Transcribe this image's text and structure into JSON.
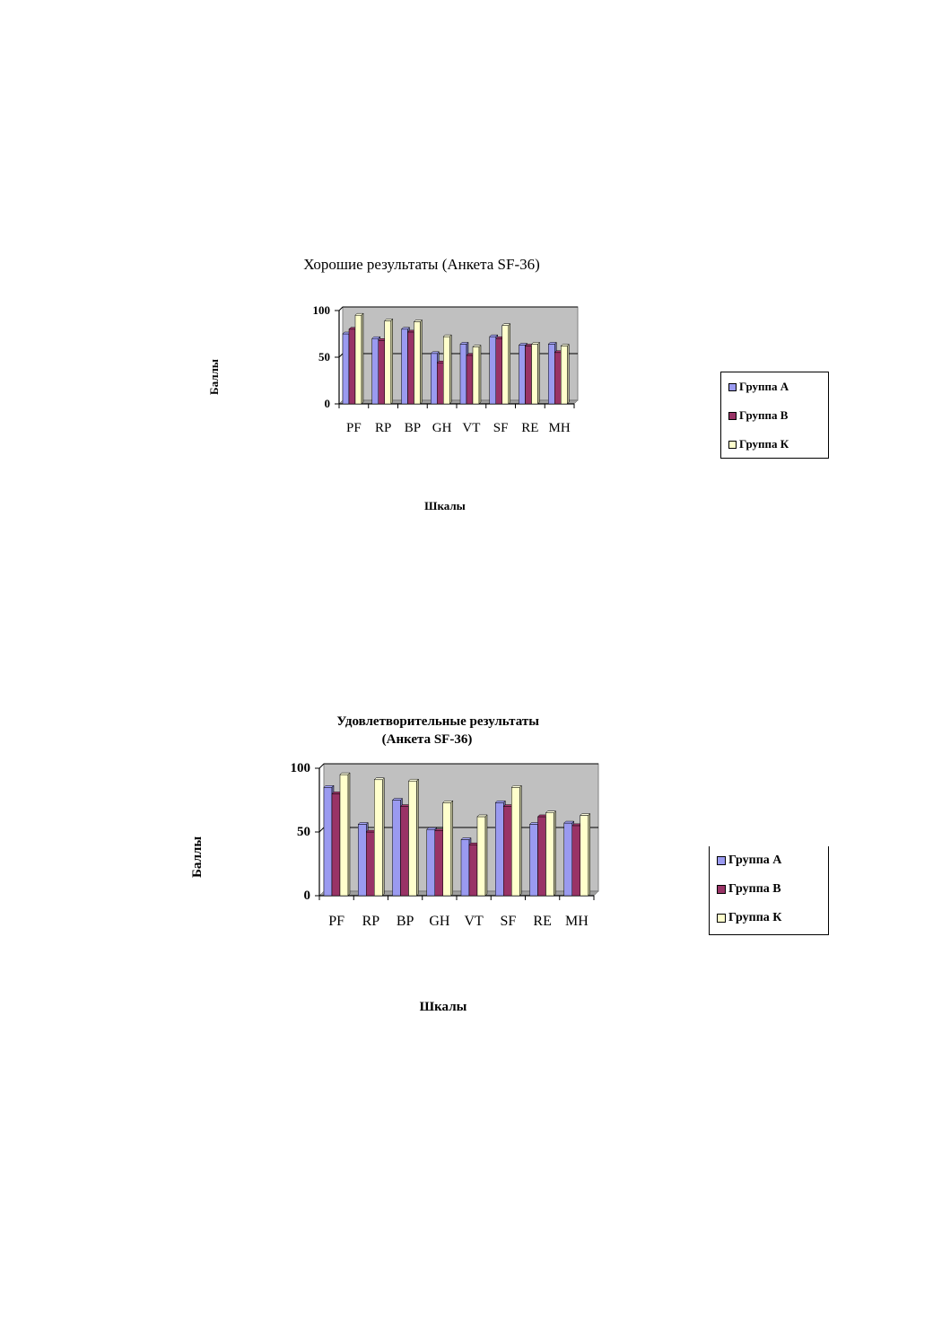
{
  "chart_data": [
    {
      "type": "bar",
      "title": "Хорошие результаты (Анкета SF-36)",
      "xlabel": "Шкалы",
      "ylabel": "Баллы",
      "ylim": [
        0,
        100
      ],
      "yticks": [
        "0",
        "50",
        "100"
      ],
      "categories": [
        "PF",
        "RP",
        "BP",
        "GH",
        "VT",
        "SF",
        "RE",
        "MH"
      ],
      "series": [
        {
          "name": "Группа А",
          "color": "#9a9af0",
          "values": [
            75,
            70,
            80,
            54,
            64,
            72,
            63,
            64
          ]
        },
        {
          "name": "Группа В",
          "color": "#993366",
          "values": [
            80,
            68,
            77,
            44,
            52,
            70,
            62,
            55
          ]
        },
        {
          "name": "Группа К",
          "color": "#ffffcc",
          "values": [
            95,
            89,
            88,
            72,
            61,
            84,
            64,
            62
          ]
        }
      ],
      "legend_position": "right",
      "plot_background": "#c0c0c0"
    },
    {
      "type": "bar",
      "title": "Удовлетворительные результаты (Анкета SF-36)",
      "xlabel": "Шкалы",
      "ylabel": "Баллы",
      "ylim": [
        0,
        100
      ],
      "yticks": [
        "0",
        "50",
        "100"
      ],
      "categories": [
        "PF",
        "RP",
        "BP",
        "GH",
        "VT",
        "SF",
        "RE",
        "MH"
      ],
      "series": [
        {
          "name": "Группа А",
          "color": "#9a9af0",
          "values": [
            85,
            56,
            75,
            52,
            44,
            73,
            56,
            57
          ]
        },
        {
          "name": "Группа В",
          "color": "#993366",
          "values": [
            80,
            50,
            70,
            51,
            40,
            70,
            62,
            55
          ]
        },
        {
          "name": "Группа К",
          "color": "#ffffcc",
          "values": [
            95,
            91,
            90,
            73,
            62,
            85,
            65,
            63
          ]
        }
      ],
      "legend_position": "right",
      "plot_background": "#c0c0c0"
    }
  ]
}
